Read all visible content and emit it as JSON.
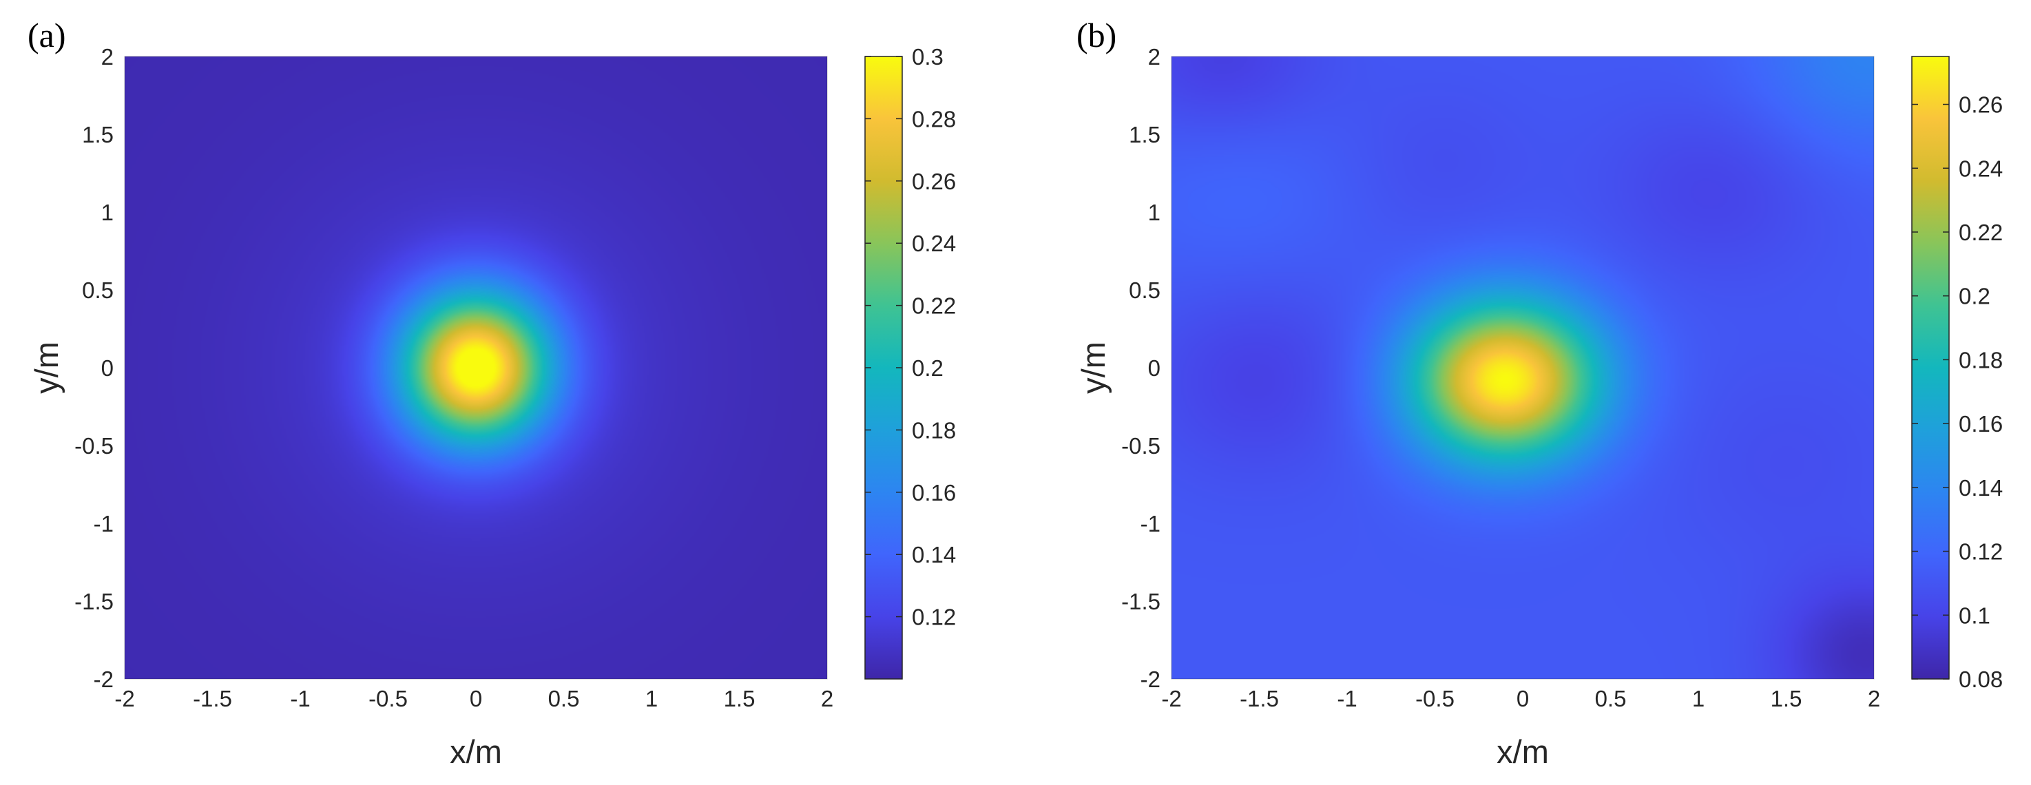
{
  "chart_data": [
    {
      "type": "heatmap",
      "panel_label": "(a)",
      "xlabel": "x/m",
      "ylabel": "y/m",
      "xlim": [
        -2,
        2
      ],
      "ylim": [
        -2,
        2
      ],
      "x_ticks": [
        -2,
        -1.5,
        -1,
        -0.5,
        0,
        0.5,
        1,
        1.5,
        2
      ],
      "y_ticks": [
        -2,
        -1.5,
        -1,
        -0.5,
        0,
        0.5,
        1,
        1.5,
        2
      ],
      "x_tick_labels": [
        "-2",
        "-1.5",
        "-1",
        "-0.5",
        "0",
        "0.5",
        "1",
        "1.5",
        "2"
      ],
      "y_tick_labels": [
        "-2",
        "-1.5",
        "-1",
        "-0.5",
        "0",
        "0.5",
        "1",
        "1.5",
        "2"
      ],
      "colormap": "parula",
      "colorbar": {
        "clim": [
          0.1,
          0.3
        ],
        "ticks": [
          0.12,
          0.14,
          0.16,
          0.18,
          0.2,
          0.22,
          0.24,
          0.26,
          0.28,
          0.3
        ],
        "tick_labels": [
          "0.12",
          "0.14",
          "0.16",
          "0.18",
          "0.2",
          "0.22",
          "0.24",
          "0.26",
          "0.28",
          "0.3"
        ]
      },
      "field": {
        "background": 0.103,
        "peaks": [
          {
            "x": 0.0,
            "y": 0.0,
            "amplitude": 0.197,
            "sigma_x": 0.3,
            "sigma_y": 0.34
          },
          {
            "x": 0.0,
            "y": 0.0,
            "amplitude": 0.012,
            "sigma_x": 0.85,
            "sigma_y": 0.95
          }
        ]
      }
    },
    {
      "type": "heatmap",
      "panel_label": "(b)",
      "xlabel": "x/m",
      "ylabel": "y/m",
      "xlim": [
        -2,
        2
      ],
      "ylim": [
        -2,
        2
      ],
      "x_ticks": [
        -2,
        -1.5,
        -1,
        -0.5,
        0,
        0.5,
        1,
        1.5,
        2
      ],
      "y_ticks": [
        -2,
        -1.5,
        -1,
        -0.5,
        0,
        0.5,
        1,
        1.5,
        2
      ],
      "x_tick_labels": [
        "-2",
        "-1.5",
        "-1",
        "-0.5",
        "0",
        "0.5",
        "1",
        "1.5",
        "2"
      ],
      "y_tick_labels": [
        "-2",
        "-1.5",
        "-1",
        "-0.5",
        "0",
        "0.5",
        "1",
        "1.5",
        "2"
      ],
      "colormap": "parula",
      "colorbar": {
        "clim": [
          0.08,
          0.275
        ],
        "ticks": [
          0.08,
          0.1,
          0.12,
          0.14,
          0.16,
          0.18,
          0.2,
          0.22,
          0.24,
          0.26
        ],
        "tick_labels": [
          "0.08",
          "0.1",
          "0.12",
          "0.14",
          "0.16",
          "0.18",
          "0.2",
          "0.22",
          "0.24",
          "0.26"
        ]
      },
      "field": {
        "background": 0.112,
        "peaks": [
          {
            "x": -0.1,
            "y": -0.08,
            "amplitude": 0.163,
            "sigma_x": 0.38,
            "sigma_y": 0.36
          },
          {
            "x": 1.95,
            "y": 2.0,
            "amplitude": 0.025,
            "sigma_x": 0.45,
            "sigma_y": 0.45
          },
          {
            "x": -1.6,
            "y": 1.1,
            "amplitude": 0.008,
            "sigma_x": 0.5,
            "sigma_y": 0.5
          },
          {
            "x": -1.7,
            "y": 1.95,
            "amplitude": -0.016,
            "sigma_x": 0.4,
            "sigma_y": 0.35
          },
          {
            "x": 1.1,
            "y": 1.15,
            "amplitude": -0.012,
            "sigma_x": 0.45,
            "sigma_y": 0.4
          },
          {
            "x": -1.5,
            "y": -0.05,
            "amplitude": -0.014,
            "sigma_x": 0.45,
            "sigma_y": 0.45
          },
          {
            "x": 1.95,
            "y": -1.85,
            "amplitude": -0.026,
            "sigma_x": 0.35,
            "sigma_y": 0.35
          },
          {
            "x": -0.5,
            "y": 1.3,
            "amplitude": -0.006,
            "sigma_x": 0.4,
            "sigma_y": 0.4
          },
          {
            "x": 1.5,
            "y": -0.6,
            "amplitude": -0.006,
            "sigma_x": 0.5,
            "sigma_y": 0.5
          }
        ]
      }
    }
  ]
}
